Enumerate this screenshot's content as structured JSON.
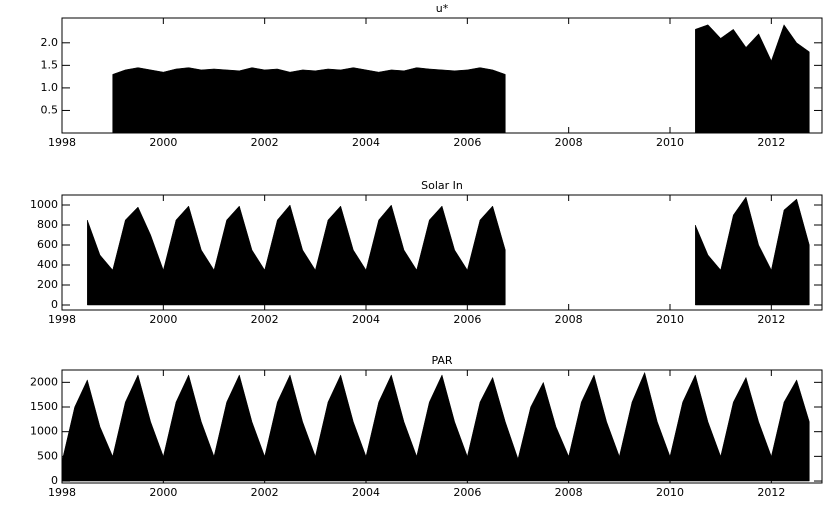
{
  "chart_data": [
    {
      "type": "area",
      "title": "u*",
      "color": "#000000",
      "x": [
        1998,
        1998.25,
        1998.5,
        1998.75,
        1999,
        1999.25,
        1999.5,
        1999.75,
        2000,
        2000.25,
        2000.5,
        2000.75,
        2001,
        2001.25,
        2001.5,
        2001.75,
        2002,
        2002.25,
        2002.5,
        2002.75,
        2003,
        2003.25,
        2003.5,
        2003.75,
        2004,
        2004.25,
        2004.5,
        2004.75,
        2005,
        2005.25,
        2005.5,
        2005.75,
        2006,
        2006.25,
        2006.5,
        2006.75,
        2007,
        2007.25,
        2007.5,
        2007.75,
        2008,
        2008.25,
        2008.5,
        2008.75,
        2009,
        2009.25,
        2009.5,
        2009.75,
        2010,
        2010.25,
        2010.5,
        2010.75,
        2011,
        2011.25,
        2011.5,
        2011.75,
        2012,
        2012.25,
        2012.5,
        2012.75
      ],
      "values": [
        null,
        null,
        null,
        null,
        1.3,
        1.4,
        1.45,
        1.4,
        1.35,
        1.42,
        1.45,
        1.4,
        1.42,
        1.4,
        1.38,
        1.45,
        1.4,
        1.42,
        1.35,
        1.4,
        1.38,
        1.42,
        1.4,
        1.45,
        1.4,
        1.35,
        1.4,
        1.38,
        1.45,
        1.42,
        1.4,
        1.38,
        1.4,
        1.45,
        1.4,
        1.3,
        null,
        null,
        null,
        null,
        null,
        null,
        null,
        null,
        null,
        null,
        null,
        null,
        null,
        null,
        2.3,
        2.4,
        2.1,
        2.3,
        1.9,
        2.2,
        1.6,
        2.4,
        2.0,
        1.8
      ],
      "xlim": [
        1998,
        2013
      ],
      "xticks": [
        1998,
        2000,
        2002,
        2004,
        2006,
        2008,
        2010,
        2012
      ],
      "ylim": [
        0,
        2.55
      ],
      "yticks": [
        0.5,
        {
          "value": 1,
          "label": "1.0"
        },
        1.5,
        {
          "value": 2,
          "label": "2.0"
        }
      ]
    },
    {
      "type": "area",
      "title": "Solar In",
      "color": "#000000",
      "x": [
        1998,
        1998.25,
        1998.5,
        1998.75,
        1999,
        1999.25,
        1999.5,
        1999.75,
        2000,
        2000.25,
        2000.5,
        2000.75,
        2001,
        2001.25,
        2001.5,
        2001.75,
        2002,
        2002.25,
        2002.5,
        2002.75,
        2003,
        2003.25,
        2003.5,
        2003.75,
        2004,
        2004.25,
        2004.5,
        2004.75,
        2005,
        2005.25,
        2005.5,
        2005.75,
        2006,
        2006.25,
        2006.5,
        2006.75,
        2007,
        2007.25,
        2007.5,
        2007.75,
        2008,
        2008.25,
        2008.5,
        2008.75,
        2009,
        2009.25,
        2009.5,
        2009.75,
        2010,
        2010.25,
        2010.5,
        2010.75,
        2011,
        2011.25,
        2011.5,
        2011.75,
        2012,
        2012.25,
        2012.5,
        2012.75
      ],
      "values": [
        null,
        null,
        850,
        500,
        350,
        850,
        980,
        700,
        350,
        850,
        990,
        550,
        350,
        850,
        990,
        550,
        350,
        850,
        1000,
        550,
        350,
        850,
        990,
        550,
        350,
        850,
        1000,
        550,
        350,
        850,
        990,
        550,
        350,
        850,
        990,
        550,
        null,
        null,
        null,
        null,
        null,
        null,
        null,
        null,
        null,
        null,
        null,
        null,
        null,
        null,
        800,
        500,
        350,
        900,
        1080,
        600,
        350,
        950,
        1060,
        600
      ],
      "xlim": [
        1998,
        2013
      ],
      "xticks": [
        1998,
        2000,
        2002,
        2004,
        2006,
        2008,
        2010,
        2012
      ],
      "ylim": [
        -50,
        1100
      ],
      "yticks": [
        0,
        200,
        400,
        600,
        800,
        1000
      ]
    },
    {
      "type": "area",
      "title": "PAR",
      "color": "#000000",
      "x": [
        1998,
        1998.25,
        1998.5,
        1998.75,
        1999,
        1999.25,
        1999.5,
        1999.75,
        2000,
        2000.25,
        2000.5,
        2000.75,
        2001,
        2001.25,
        2001.5,
        2001.75,
        2002,
        2002.25,
        2002.5,
        2002.75,
        2003,
        2003.25,
        2003.5,
        2003.75,
        2004,
        2004.25,
        2004.5,
        2004.75,
        2005,
        2005.25,
        2005.5,
        2005.75,
        2006,
        2006.25,
        2006.5,
        2006.75,
        2007,
        2007.25,
        2007.5,
        2007.75,
        2008,
        2008.25,
        2008.5,
        2008.75,
        2009,
        2009.25,
        2009.5,
        2009.75,
        2010,
        2010.25,
        2010.5,
        2010.75,
        2011,
        2011.25,
        2011.5,
        2011.75,
        2012,
        2012.25,
        2012.5,
        2012.75
      ],
      "values": [
        400,
        1500,
        2050,
        1100,
        500,
        1600,
        2150,
        1200,
        500,
        1600,
        2150,
        1200,
        500,
        1600,
        2150,
        1200,
        500,
        1600,
        2150,
        1200,
        500,
        1600,
        2150,
        1200,
        500,
        1600,
        2150,
        1200,
        500,
        1600,
        2150,
        1200,
        500,
        1600,
        2100,
        1200,
        450,
        1500,
        2000,
        1100,
        500,
        1600,
        2150,
        1200,
        500,
        1600,
        2200,
        1200,
        500,
        1600,
        2150,
        1200,
        500,
        1600,
        2100,
        1200,
        500,
        1600,
        2050,
        1200
      ],
      "xlim": [
        1998,
        2013
      ],
      "xticks": [
        1998,
        2000,
        2002,
        2004,
        2006,
        2008,
        2010,
        2012
      ],
      "ylim": [
        -40,
        2250
      ],
      "yticks": [
        0,
        500,
        1000,
        1500,
        2000
      ]
    }
  ]
}
